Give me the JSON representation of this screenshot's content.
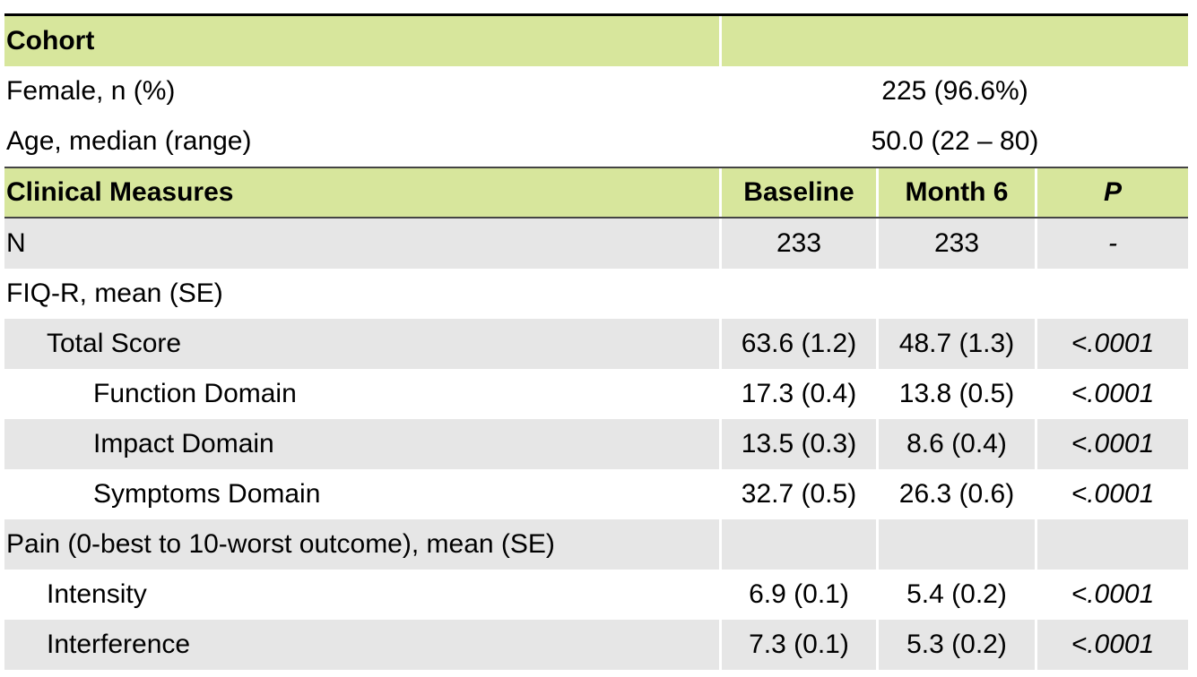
{
  "cohort": {
    "header": "Cohort",
    "rows": [
      {
        "label": "Female, n (%)",
        "value": "225 (96.6%)"
      },
      {
        "label": "Age, median (range)",
        "value": "50.0 (22 – 80)"
      }
    ]
  },
  "measures": {
    "header": [
      "Clinical Measures",
      "Baseline",
      "Month 6",
      "P"
    ],
    "rows": [
      {
        "label": "N",
        "values": [
          "233",
          "233",
          "-"
        ]
      },
      {
        "label": "FIQ-R, mean (SE)"
      },
      {
        "label": "Total Score",
        "values": [
          "63.6 (1.2)",
          "48.7 (1.3)",
          "<.0001"
        ]
      },
      {
        "label": "Function Domain",
        "values": [
          "17.3 (0.4)",
          "13.8 (0.5)",
          "<.0001"
        ]
      },
      {
        "label": "Impact Domain",
        "values": [
          "13.5 (0.3)",
          "8.6 (0.4)",
          "<.0001"
        ]
      },
      {
        "label": "Symptoms Domain",
        "values": [
          "32.7 (0.5)",
          "26.3 (0.6)",
          "<.0001"
        ]
      },
      {
        "label": "Pain (0-best to 10-worst outcome), mean (SE)"
      },
      {
        "label": "Intensity",
        "values": [
          "6.9 (0.1)",
          "5.4 (0.2)",
          "<.0001"
        ]
      },
      {
        "label": "Interference",
        "values": [
          "7.3 (0.1)",
          "5.3 (0.2)",
          "<.0001"
        ]
      }
    ]
  }
}
